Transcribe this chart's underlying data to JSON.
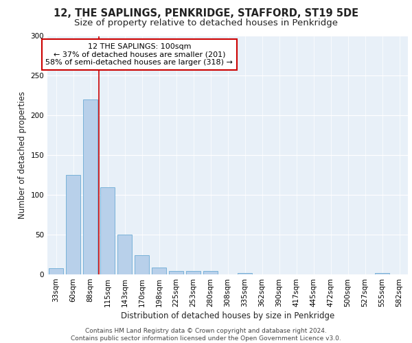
{
  "title1": "12, THE SAPLINGS, PENKRIDGE, STAFFORD, ST19 5DE",
  "title2": "Size of property relative to detached houses in Penkridge",
  "xlabel": "Distribution of detached houses by size in Penkridge",
  "ylabel": "Number of detached properties",
  "bar_labels": [
    "33sqm",
    "60sqm",
    "88sqm",
    "115sqm",
    "143sqm",
    "170sqm",
    "198sqm",
    "225sqm",
    "253sqm",
    "280sqm",
    "308sqm",
    "335sqm",
    "362sqm",
    "390sqm",
    "417sqm",
    "445sqm",
    "472sqm",
    "500sqm",
    "527sqm",
    "555sqm",
    "582sqm"
  ],
  "bar_values": [
    8,
    125,
    220,
    110,
    50,
    24,
    9,
    4,
    4,
    4,
    0,
    2,
    0,
    0,
    0,
    0,
    0,
    0,
    0,
    2,
    0
  ],
  "bar_color": "#b8d0ea",
  "bar_edge_color": "#6aaad4",
  "vline_color": "#cc0000",
  "annotation_text": "12 THE SAPLINGS: 100sqm\n← 37% of detached houses are smaller (201)\n58% of semi-detached houses are larger (318) →",
  "annotation_box_color": "#ffffff",
  "annotation_box_edge": "#cc0000",
  "ylim": [
    0,
    300
  ],
  "yticks": [
    0,
    50,
    100,
    150,
    200,
    250,
    300
  ],
  "bg_color": "#e8f0f8",
  "footer_text": "Contains HM Land Registry data © Crown copyright and database right 2024.\nContains public sector information licensed under the Open Government Licence v3.0.",
  "title1_fontsize": 10.5,
  "title2_fontsize": 9.5,
  "xlabel_fontsize": 8.5,
  "ylabel_fontsize": 8.5,
  "tick_fontsize": 7.5,
  "annotation_fontsize": 8,
  "footer_fontsize": 6.5
}
